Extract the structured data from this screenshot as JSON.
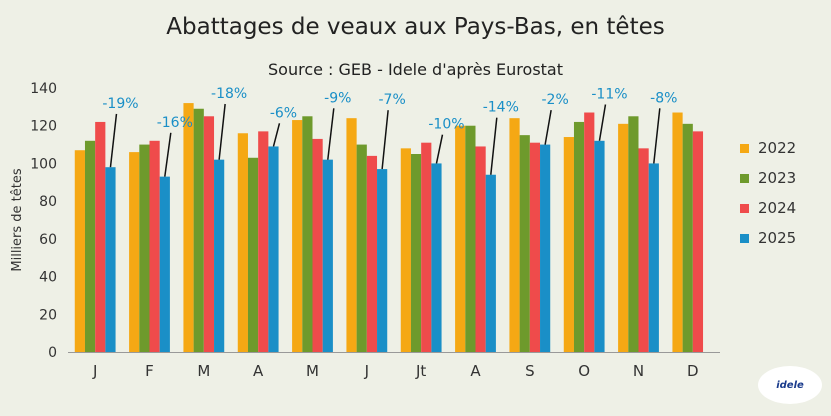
{
  "chart_data": {
    "type": "bar",
    "title": "Abattages de veaux aux Pays-Bas, en têtes",
    "subtitle": "Source : GEB - Idele d'après Eurostat",
    "ylabel": "Milliers de têtes",
    "xlabel": "",
    "ylim": [
      0,
      140
    ],
    "yticks": [
      0,
      20,
      40,
      60,
      80,
      100,
      120,
      140
    ],
    "grid": false,
    "legend_position": "right",
    "categories": [
      "J",
      "F",
      "M",
      "A",
      "M",
      "J",
      "Jt",
      "A",
      "S",
      "O",
      "N",
      "D"
    ],
    "series": [
      {
        "name": "2022",
        "color": "#f5a814",
        "values": [
          107,
          106,
          132,
          116,
          123,
          124,
          108,
          120,
          124,
          114,
          121,
          127
        ]
      },
      {
        "name": "2023",
        "color": "#6e9a2c",
        "values": [
          112,
          110,
          129,
          103,
          125,
          110,
          105,
          120,
          115,
          122,
          125,
          121
        ]
      },
      {
        "name": "2024",
        "color": "#ef4b4b",
        "values": [
          122,
          112,
          125,
          117,
          113,
          104,
          111,
          109,
          111,
          127,
          108,
          117
        ]
      },
      {
        "name": "2025",
        "color": "#1a8fc7",
        "values": [
          98,
          93,
          102,
          109,
          102,
          97,
          100,
          94,
          110,
          112,
          100,
          null
        ]
      }
    ],
    "annotations": [
      "-19%",
      "-16%",
      "-18%",
      "-6%",
      "-9%",
      "-7%",
      "-10%",
      "-14%",
      "-2%",
      "-11%",
      "-8%",
      null
    ],
    "annotation_color": "#1a8fc7"
  },
  "logo": {
    "text": "idele"
  }
}
